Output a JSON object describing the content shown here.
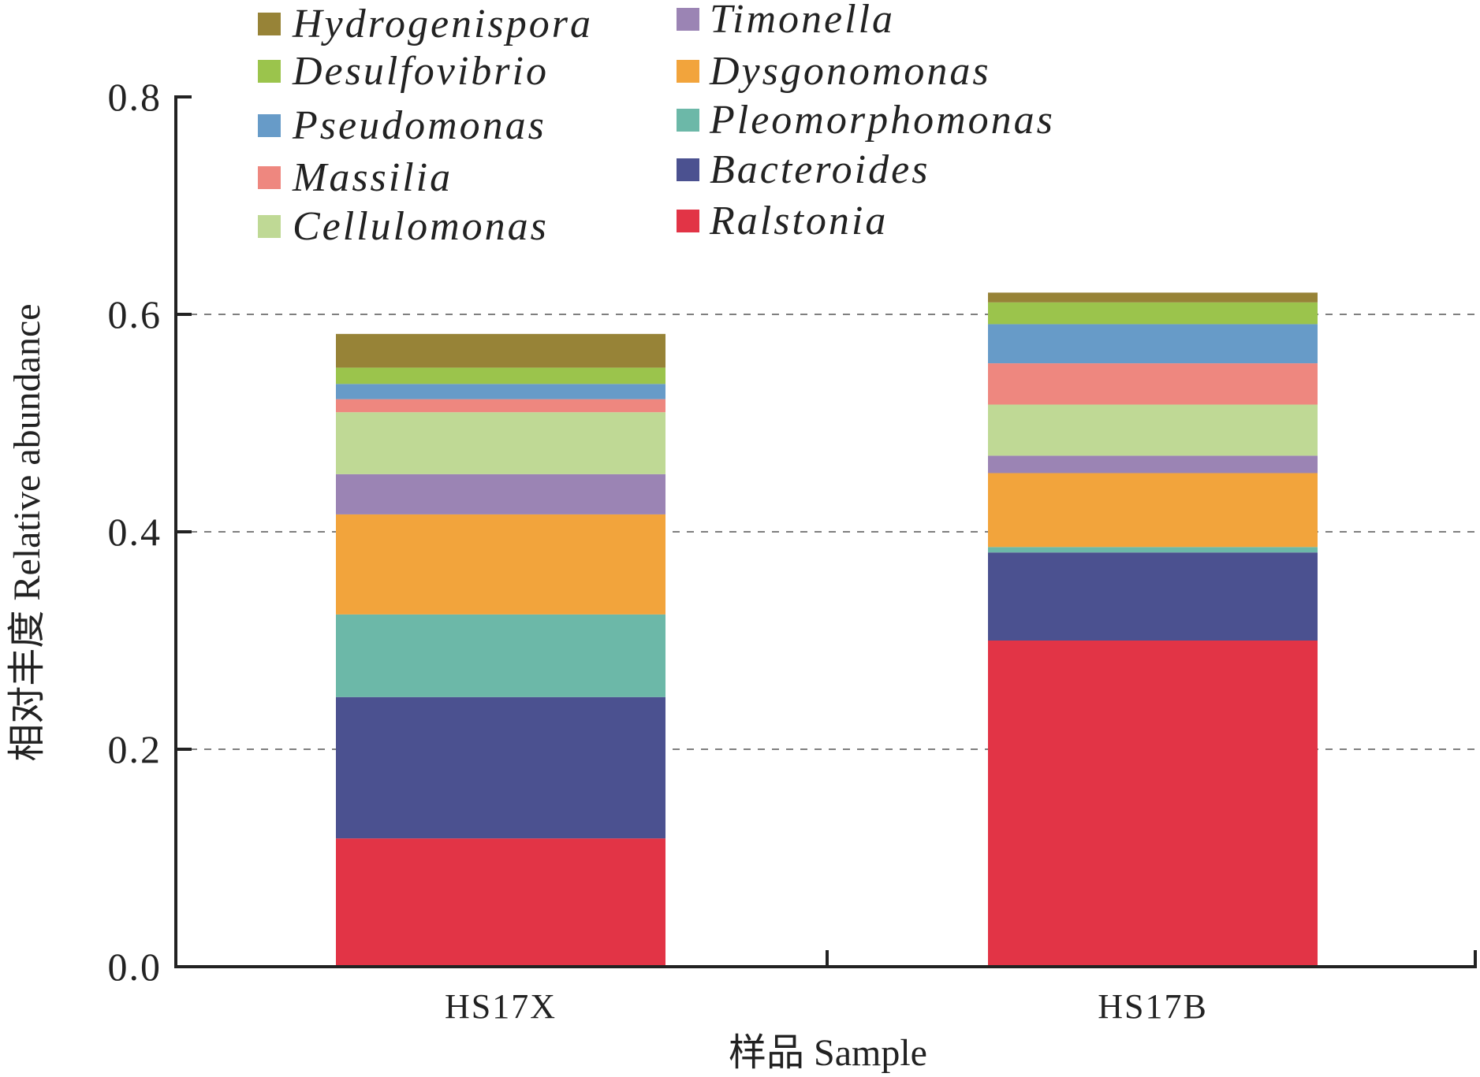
{
  "chart_data": {
    "type": "bar",
    "stacked": true,
    "title": "",
    "xlabel": "样品 Sample",
    "ylabel": "相对丰度 Relative abundance",
    "ylim": [
      0,
      0.8
    ],
    "yticks": [
      "0.0",
      "0.2",
      "0.4",
      "0.6",
      "0.8"
    ],
    "grid": "horizontal dashed",
    "legend_position": "top",
    "categories": [
      "HS17X",
      "HS17B"
    ],
    "series": [
      {
        "name": "Ralstonia",
        "color": "#e23446",
        "values": [
          0.118,
          0.3
        ]
      },
      {
        "name": "Bacteroides",
        "color": "#4b5190",
        "values": [
          0.13,
          0.081
        ]
      },
      {
        "name": "Pleomorphomonas",
        "color": "#6cb8a8",
        "values": [
          0.076,
          0.005
        ]
      },
      {
        "name": "Dysgonomonas",
        "color": "#f2a43c",
        "values": [
          0.092,
          0.068
        ]
      },
      {
        "name": "Timonella",
        "color": "#9b84b4",
        "values": [
          0.037,
          0.016
        ]
      },
      {
        "name": "Cellulomonas",
        "color": "#bfd995",
        "values": [
          0.057,
          0.047
        ]
      },
      {
        "name": "Massilia",
        "color": "#ee877f",
        "values": [
          0.012,
          0.038
        ]
      },
      {
        "name": "Pseudomonas",
        "color": "#679bc8",
        "values": [
          0.014,
          0.036
        ]
      },
      {
        "name": "Desulfovibrio",
        "color": "#9bc44c",
        "values": [
          0.015,
          0.02
        ]
      },
      {
        "name": "Hydrogenispora",
        "color": "#978337",
        "values": [
          0.031,
          0.009
        ]
      }
    ],
    "legend_order": [
      "Hydrogenispora",
      "Desulfovibrio",
      "Pseudomonas",
      "Massilia",
      "Cellulomonas",
      "Timonella",
      "Dysgonomonas",
      "Pleomorphomonas",
      "Bacteroides",
      "Ralstonia"
    ]
  }
}
